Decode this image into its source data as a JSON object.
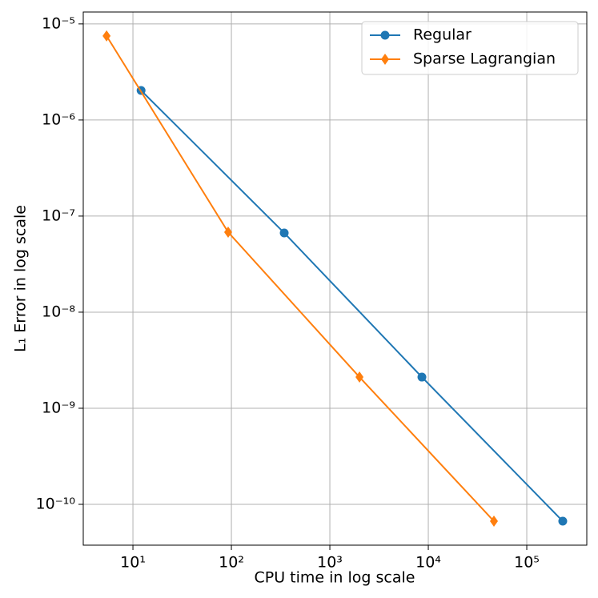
{
  "chart_data": {
    "type": "line",
    "x_label": "CPU time in log scale",
    "y_label": "L₁ Error in log scale",
    "xscale": "log",
    "yscale": "log",
    "grid": true,
    "legend_position": "upper right",
    "xlim": [
      3.13,
      407000
    ],
    "ylim": [
      3.76e-11,
      1.33e-05
    ],
    "xticks": [
      {
        "value": 10,
        "label": "10¹"
      },
      {
        "value": 100,
        "label": "10²"
      },
      {
        "value": 1000,
        "label": "10³"
      },
      {
        "value": 10000,
        "label": "10⁴"
      },
      {
        "value": 100000,
        "label": "10⁵"
      }
    ],
    "yticks": [
      {
        "value": 1e-10,
        "label": "10⁻¹⁰"
      },
      {
        "value": 1e-09,
        "label": "10⁻⁹"
      },
      {
        "value": 1e-08,
        "label": "10⁻⁸"
      },
      {
        "value": 1e-07,
        "label": "10⁻⁷"
      },
      {
        "value": 1e-06,
        "label": "10⁻⁶"
      },
      {
        "value": 1e-05,
        "label": "10⁻⁵"
      }
    ],
    "series": [
      {
        "name": "Regular",
        "color": "#1f77b4",
        "marker": "circle",
        "x": [
          12.1,
          344,
          8610,
          232000
        ],
        "values": [
          2.03e-06,
          6.68e-08,
          2.11e-09,
          6.68e-11
        ]
      },
      {
        "name": "Sparse Lagrangian",
        "color": "#ff7f0e",
        "marker": "diamond",
        "x": [
          5.4,
          92.7,
          2000,
          46400
        ],
        "values": [
          7.5e-06,
          6.8e-08,
          2.11e-09,
          6.68e-11
        ]
      }
    ]
  }
}
